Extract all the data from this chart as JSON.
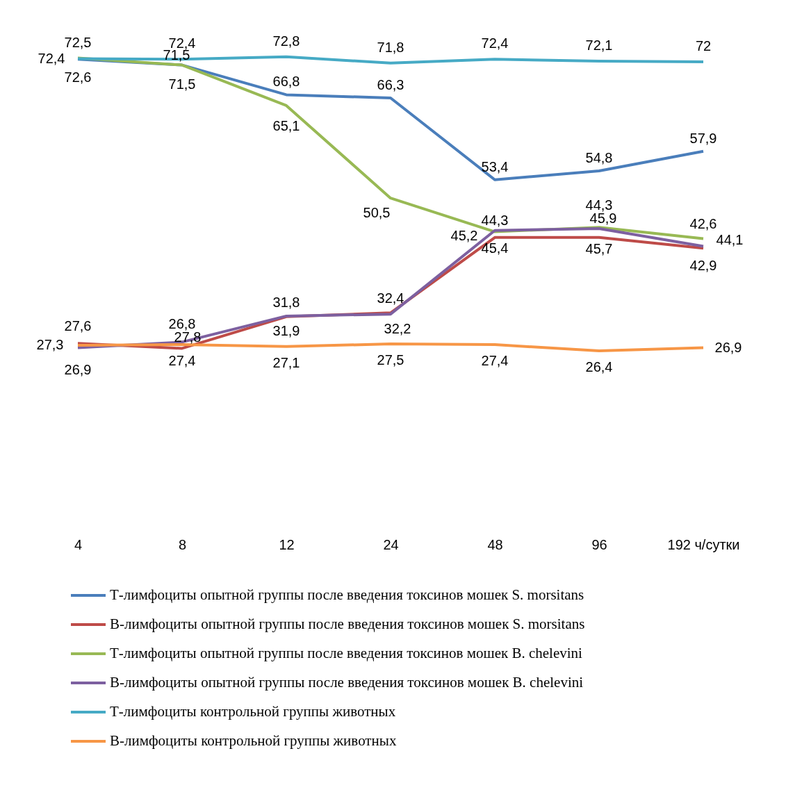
{
  "chart_data": {
    "type": "line",
    "legend": "bottom",
    "grid": false,
    "categories": [
      "4",
      "8",
      "12",
      "24",
      "48",
      "96",
      "192 ч/сутки"
    ],
    "series": [
      {
        "name": "Т-лимфоциты опытной группы после введения токсинов мошек S. morsitans",
        "color": "#4a7ebb",
        "values": [
          72.4,
          71.5,
          66.8,
          66.3,
          53.4,
          54.8,
          57.9
        ],
        "value_labels": [
          "72,4",
          "71,5",
          "66,8",
          "66,3",
          "53,4",
          "54,8",
          "57,9"
        ]
      },
      {
        "name": "В-лимфоциты опытной группы после введения токсинов мошек S. morsitans",
        "color": "#be4b48",
        "values": [
          27.6,
          26.8,
          31.8,
          32.4,
          44.3,
          44.3,
          42.6
        ],
        "value_labels": [
          "27,6",
          "26,8",
          "31,8",
          "32,4",
          "44,3",
          "44,3",
          "42,6"
        ]
      },
      {
        "name": "Т-лимфоциты опытной группы после введения токсинов мошек B. chelevini",
        "color": "#98b954",
        "values": [
          72.6,
          71.5,
          65.1,
          50.5,
          45.2,
          45.9,
          44.1
        ],
        "value_labels": [
          "72,6",
          "71,5",
          "65,1",
          "50,5",
          "45,2",
          "45,9",
          "44,1"
        ]
      },
      {
        "name": "В-лимфоциты опытной группы после введения токсинов мошек B. chelevini",
        "color": "#7d60a0",
        "values": [
          26.9,
          27.8,
          31.9,
          32.2,
          45.4,
          45.7,
          42.9
        ],
        "value_labels": [
          "26,9",
          "27,8",
          "31,9",
          "32,2",
          "45,4",
          "45,7",
          "42,9"
        ]
      },
      {
        "name": "Т-лимфоциты контрольной группы животных",
        "color": "#46aac5",
        "values": [
          72.5,
          72.4,
          72.8,
          71.8,
          72.4,
          72.1,
          72
        ],
        "value_labels": [
          "72,5",
          "72,4",
          "72,8",
          "71,8",
          "72,4",
          "72,1",
          "72"
        ]
      },
      {
        "name": "В-лимфоциты контрольной группы животных",
        "color": "#f79646",
        "values": [
          27.3,
          27.4,
          27.1,
          27.5,
          27.4,
          26.4,
          26.9
        ],
        "value_labels": [
          "27,3",
          "27,4",
          "27,1",
          "27,5",
          "27,4",
          "26,4",
          "26,9"
        ]
      }
    ]
  }
}
